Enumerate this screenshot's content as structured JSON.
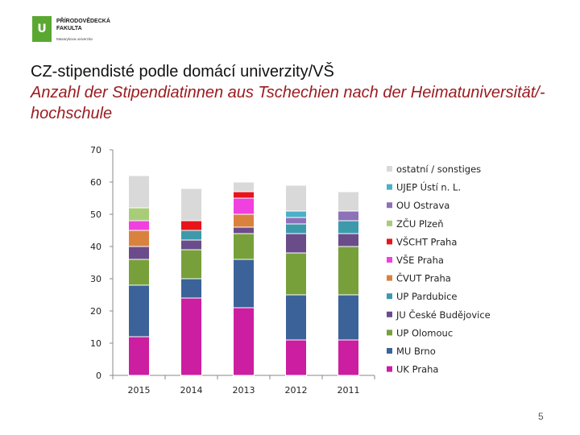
{
  "logo": {
    "line1": "PŘÍRODOVĚDECKÁ",
    "line2": "FAKULTA",
    "subtitle": "Masarykova univerzita"
  },
  "title_cz": "CZ-stipendisté podle domácí univerzity/VŠ",
  "title_de": "Anzahl der Stipendiatinnen aus Tschechien nach der Heimatuniversität/-hochschule",
  "page_number": "5",
  "chart_data": {
    "type": "bar",
    "stacked": true,
    "categories": [
      "2015",
      "2014",
      "2013",
      "2012",
      "2011"
    ],
    "ylim": [
      0,
      70
    ],
    "yticks": [
      0,
      10,
      20,
      30,
      40,
      50,
      60,
      70
    ],
    "grid": false,
    "legend_position": "right",
    "series": [
      {
        "name": "UK Praha",
        "color": "#cc1ea0",
        "values": [
          12,
          24,
          21,
          11,
          11
        ]
      },
      {
        "name": "MU Brno",
        "color": "#3b6399",
        "values": [
          16,
          6,
          15,
          14,
          14
        ]
      },
      {
        "name": "UP Olomouc",
        "color": "#77a03b",
        "values": [
          8,
          9,
          8,
          13,
          15
        ]
      },
      {
        "name": "JU České Budějovice",
        "color": "#6a4c8a",
        "values": [
          4,
          3,
          2,
          6,
          4
        ]
      },
      {
        "name": "UP Pardubice",
        "color": "#3c9aab",
        "values": [
          0,
          3,
          0,
          3,
          4
        ]
      },
      {
        "name": "ČVUT Praha",
        "color": "#d9823f",
        "values": [
          5,
          0,
          4,
          0,
          0
        ]
      },
      {
        "name": "VŠE Praha",
        "color": "#f040e0",
        "values": [
          3,
          0,
          5,
          0,
          0
        ]
      },
      {
        "name": "VŠCHT Praha",
        "color": "#e8141c",
        "values": [
          0,
          3,
          2,
          0,
          0
        ]
      },
      {
        "name": "ZČU Plzeň",
        "color": "#a8cc78",
        "values": [
          4,
          0,
          0,
          0,
          0
        ]
      },
      {
        "name": "OU Ostrava",
        "color": "#8e72b8",
        "values": [
          0,
          0,
          0,
          2,
          3
        ]
      },
      {
        "name": "UJEP Ústí n. L.",
        "color": "#4cb0c8",
        "values": [
          0,
          0,
          0,
          2,
          0
        ]
      },
      {
        "name": "ostatní / sonstiges",
        "color": "#d9d9d9",
        "values": [
          10,
          10,
          3,
          8,
          6
        ]
      }
    ]
  }
}
